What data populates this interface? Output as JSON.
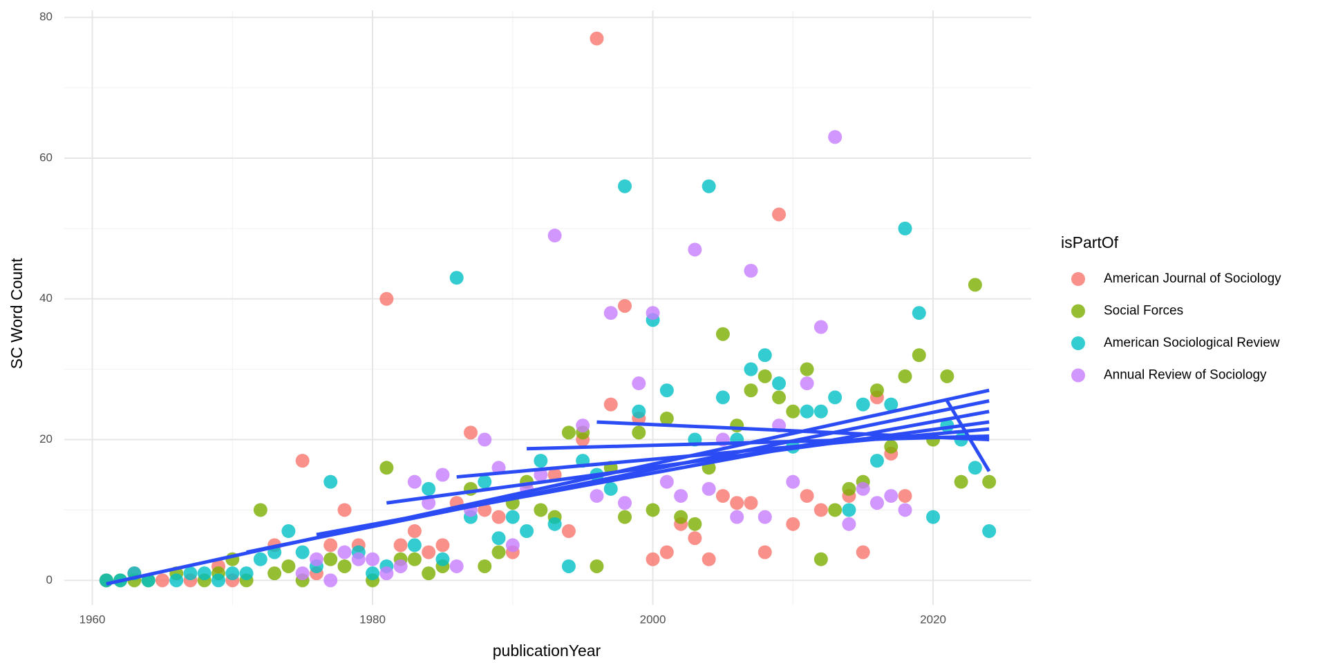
{
  "chart_data": {
    "type": "scatter",
    "x_label": "publicationYear",
    "y_label": "SC Word Count",
    "legend_title": "isPartOf",
    "legend_position": "right",
    "grid": true,
    "xlim": [
      1958,
      2027
    ],
    "ylim": [
      -3.5,
      81
    ],
    "xticks": [
      1960,
      1980,
      2000,
      2020
    ],
    "yticks": [
      0,
      20,
      40,
      60,
      80
    ],
    "x_minor_grid": [
      1970,
      1990,
      2010
    ],
    "y_minor_grid": [
      10,
      30,
      50,
      70
    ],
    "series": [
      {
        "name": "American Journal of Sociology",
        "color": "#f8766d",
        "x": [
          1961,
          1963,
          1965,
          1967,
          1969,
          1970,
          1973,
          1975,
          1976,
          1977,
          1978,
          1979,
          1981,
          1982,
          1983,
          1984,
          1985,
          1986,
          1987,
          1988,
          1989,
          1990,
          1993,
          1994,
          1995,
          1996,
          1997,
          1998,
          1999,
          2000,
          2001,
          2002,
          2003,
          2004,
          2005,
          2006,
          2007,
          2008,
          2009,
          2010,
          2011,
          2012,
          2014,
          2015,
          2016,
          2017,
          2018
        ],
        "values": [
          0,
          1,
          0,
          0,
          2,
          0,
          5,
          17,
          1,
          5,
          10,
          5,
          40,
          5,
          7,
          4,
          5,
          11,
          21,
          10,
          9,
          4,
          15,
          7,
          20,
          77,
          25,
          39,
          23,
          3,
          4,
          8,
          6,
          3,
          12,
          11,
          11,
          4,
          52,
          8,
          12,
          10,
          12,
          4,
          26,
          18,
          12
        ]
      },
      {
        "name": "Social Forces",
        "color": "#7cae00",
        "x": [
          1961,
          1962,
          1963,
          1964,
          1966,
          1968,
          1969,
          1970,
          1971,
          1972,
          1973,
          1974,
          1975,
          1977,
          1978,
          1980,
          1981,
          1982,
          1983,
          1984,
          1985,
          1987,
          1988,
          1989,
          1990,
          1991,
          1992,
          1993,
          1994,
          1995,
          1996,
          1997,
          1998,
          1999,
          2000,
          2001,
          2002,
          2003,
          2004,
          2005,
          2006,
          2007,
          2008,
          2009,
          2010,
          2011,
          2012,
          2013,
          2014,
          2015,
          2016,
          2017,
          2018,
          2019,
          2020,
          2021,
          2022,
          2023,
          2024
        ],
        "values": [
          0,
          0,
          0,
          0,
          1,
          0,
          1,
          3,
          0,
          10,
          1,
          2,
          0,
          3,
          2,
          0,
          16,
          3,
          3,
          1,
          2,
          13,
          2,
          4,
          11,
          14,
          10,
          9,
          21,
          21,
          2,
          16,
          9,
          21,
          10,
          23,
          9,
          8,
          16,
          35,
          22,
          27,
          29,
          26,
          24,
          30,
          3,
          10,
          13,
          14,
          27,
          19,
          29,
          32,
          20,
          29,
          14,
          42,
          14
        ]
      },
      {
        "name": "American Sociological Review",
        "color": "#00bfc4",
        "x": [
          1961,
          1962,
          1963,
          1964,
          1966,
          1967,
          1968,
          1969,
          1970,
          1971,
          1972,
          1973,
          1974,
          1975,
          1976,
          1977,
          1979,
          1980,
          1981,
          1983,
          1984,
          1985,
          1986,
          1987,
          1988,
          1989,
          1990,
          1991,
          1992,
          1993,
          1994,
          1995,
          1996,
          1997,
          1998,
          1999,
          2000,
          2001,
          2003,
          2004,
          2005,
          2006,
          2007,
          2008,
          2009,
          2010,
          2011,
          2012,
          2013,
          2014,
          2015,
          2016,
          2017,
          2018,
          2019,
          2020,
          2021,
          2022,
          2023,
          2024
        ],
        "values": [
          0,
          0,
          1,
          0,
          0,
          1,
          1,
          0,
          1,
          1,
          3,
          4,
          7,
          4,
          2,
          14,
          4,
          1,
          2,
          5,
          13,
          3,
          43,
          9,
          14,
          6,
          9,
          7,
          17,
          8,
          2,
          17,
          15,
          13,
          56,
          24,
          37,
          27,
          20,
          56,
          26,
          20,
          30,
          32,
          28,
          19,
          24,
          24,
          26,
          10,
          25,
          17,
          25,
          50,
          38,
          9,
          22,
          20,
          16,
          7
        ]
      },
      {
        "name": "Annual Review of Sociology",
        "color": "#c77cff",
        "x": [
          1975,
          1976,
          1977,
          1978,
          1979,
          1980,
          1981,
          1982,
          1983,
          1984,
          1985,
          1986,
          1987,
          1988,
          1989,
          1990,
          1991,
          1992,
          1993,
          1995,
          1996,
          1997,
          1998,
          1999,
          2000,
          2001,
          2002,
          2003,
          2004,
          2005,
          2006,
          2007,
          2008,
          2009,
          2010,
          2011,
          2012,
          2013,
          2014,
          2015,
          2016,
          2017,
          2018
        ],
        "values": [
          1,
          3,
          0,
          4,
          3,
          3,
          1,
          2,
          14,
          11,
          15,
          2,
          10,
          20,
          16,
          5,
          13,
          15,
          49,
          22,
          12,
          38,
          11,
          28,
          38,
          14,
          12,
          47,
          13,
          20,
          9,
          44,
          9,
          22,
          14,
          28,
          36,
          63,
          8,
          13,
          11,
          12,
          10
        ]
      }
    ],
    "fit_color": "#2b4cf5",
    "fit_lines": [
      {
        "x": [
          1961,
          2024
        ],
        "y": [
          -0.5,
          27
        ]
      },
      {
        "x": [
          1971,
          2024
        ],
        "y": [
          4,
          25.5
        ]
      },
      {
        "x": [
          1976,
          2024
        ],
        "y": [
          6.5,
          24
        ]
      },
      {
        "x": [
          1981,
          2024
        ],
        "y": [
          11,
          22.5
        ]
      },
      {
        "x": [
          1986,
          2024
        ],
        "y": [
          14.7,
          21.5
        ]
      },
      {
        "x": [
          1991,
          2024
        ],
        "y": [
          18.7,
          20.5
        ]
      },
      {
        "x": [
          1996,
          2024
        ],
        "y": [
          22.5,
          20
        ]
      },
      {
        "x": [
          2021,
          2024
        ],
        "y": [
          25.5,
          15.5
        ]
      }
    ]
  }
}
